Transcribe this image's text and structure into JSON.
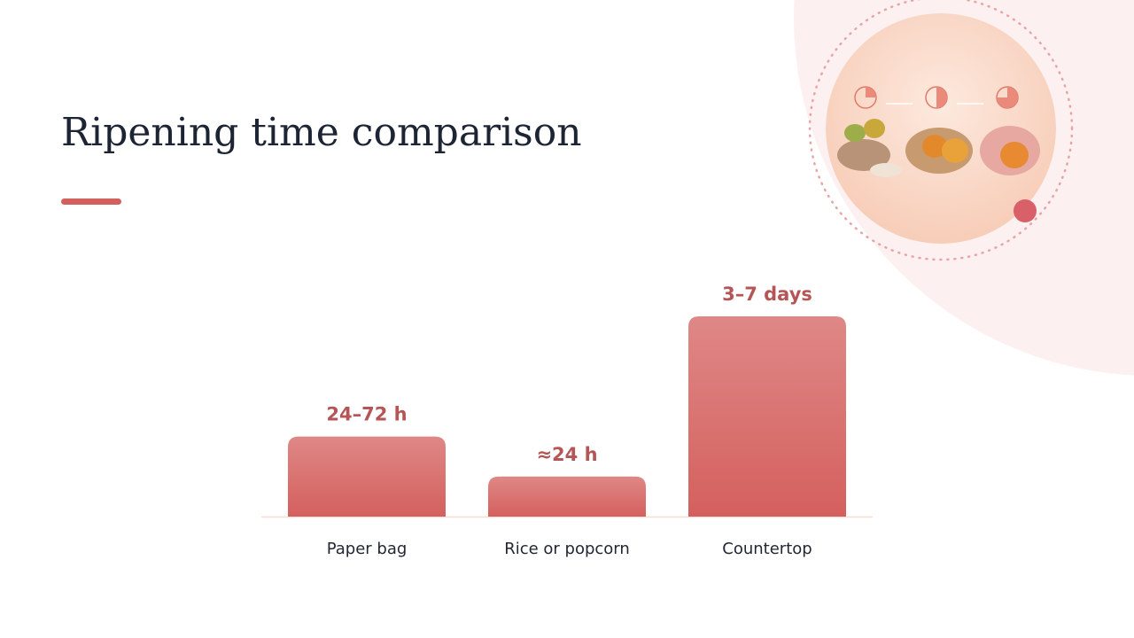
{
  "chart_data": {
    "type": "bar",
    "title": "Ripening time comparison",
    "categories": [
      "Paper bag",
      "Rice or popcorn",
      "Countertop"
    ],
    "values": [
      48,
      24,
      120
    ],
    "value_labels": [
      "24–72 h",
      "≈24 h",
      "3–7 days"
    ],
    "color": "#d4605e"
  }
}
